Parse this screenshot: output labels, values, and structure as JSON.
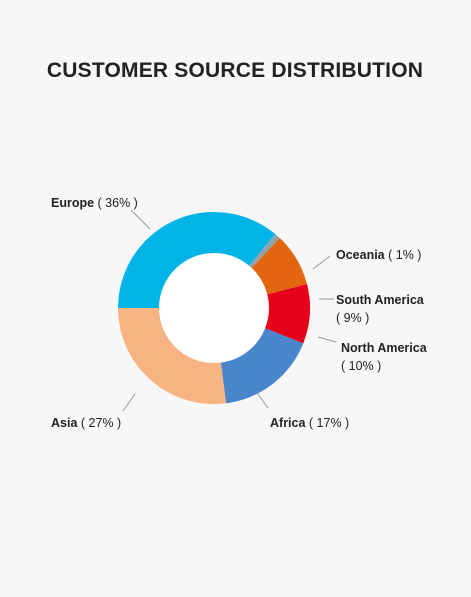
{
  "chart_data": {
    "type": "pie",
    "variant": "donut",
    "title": "CUSTOMER SOURCE DISTRIBUTION",
    "slices": [
      {
        "label": "Europe",
        "pct_text": "( 36% )",
        "value": 36,
        "color": "#00b4e8"
      },
      {
        "label": "Oceania",
        "pct_text": "( 1% )",
        "value": 1,
        "color": "#8fa3ad"
      },
      {
        "label": "South America",
        "pct_text": "( 9% )",
        "value": 9,
        "color": "#e4650f"
      },
      {
        "label": "North America",
        "pct_text": "( 10% )",
        "value": 10,
        "color": "#e6001a"
      },
      {
        "label": "Africa",
        "pct_text": "( 17% )",
        "value": 17,
        "color": "#4a86cc"
      },
      {
        "label": "Asia",
        "pct_text": "( 27% )",
        "value": 27,
        "color": "#f7b482"
      }
    ],
    "background": "#f7f7f7"
  }
}
